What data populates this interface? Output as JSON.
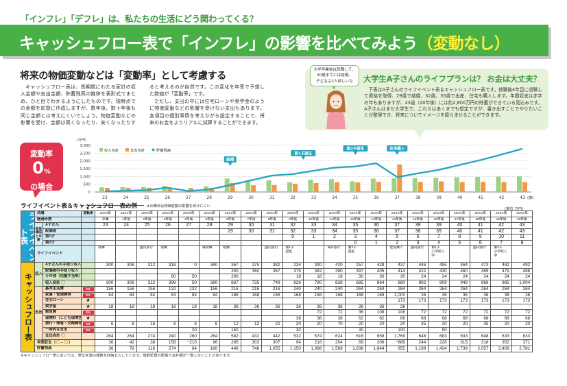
{
  "header": {
    "subtitle": "「インフレ」「デフレ」は、私たちの生活にどう関わってくる？",
    "title": "キャッシュフロー表で「インフレ」の影響を比べてみよう",
    "title_highlight": "（変動なし）"
  },
  "lead": {
    "heading": "将来の物価変動などは「変動率」として考慮する",
    "paragraphs": [
      "キャッシュフロー表は、長期間にわたる家計の収入金額や支出金額、貯蓄残高の推移を表形式でまとめ、ひと目でわかるようにしたものです。現時点での金額を前提に作成しますが、数年後、数十年後も同じ金額とは考えにくいでしょう。物価変動などの影響を受け、金額は高くなったり、安くなったりすると考えるのが自然です。この変化を年率で予想した数値が「変動率」です。",
      "ただし、支出の中には住宅ローンや奨学金のように物価変動などの影響を受けない支出もあります。各項目の個別事情を考えながら設定することで、将来のお金をよりリアルに試算することができます。"
    ]
  },
  "plan": {
    "bubble": "大学卒業後は就職して、\n30歳までには結婚、\n子どもは2人欲しいな",
    "title": "大学生A子さんのライフプランは？ お金は大丈夫？",
    "body": "下表はA子さんのライフイベント表＆キャッシュフロー表です。就職後4年目に退職して資格を取得、29歳で結婚、32歳、35歳で出産、住宅も購入します。年間収支は赤字の年もありますが、43歳（20年後）には約2,800万円の貯蓄ができている見込みです。A子さんはまだ大学生で、これらはあくまでも想定ですが、書き出すことでやりたいことが整理でき、将来についてイメージを膨らませることができます。"
  },
  "badge": {
    "line1": "変動率",
    "value": "0",
    "unit": "%",
    "line3": "の場合"
  },
  "colors": {
    "green": "#49b047",
    "income": "#9fd083",
    "expense": "#ef9a45",
    "savings": "#2aa6c1",
    "red": "#e2334e",
    "blue": "#24a3d1",
    "yellow": "#f6c81b"
  },
  "chart_data": {
    "type": "bar+line",
    "y_unit": "(万円)",
    "x_unit": "(歳)",
    "ylim": [
      0,
      3000
    ],
    "yticks": [
      "0",
      "500",
      "1,000",
      "1,500",
      "2,000",
      "2,500",
      "3,000"
    ],
    "ytick_values": [
      0,
      500,
      1000,
      1500,
      2000,
      2500,
      3000
    ],
    "categories": [
      "23",
      "24",
      "25",
      "26",
      "27",
      "28",
      "29",
      "30",
      "31",
      "32",
      "33",
      "34",
      "35",
      "36",
      "37",
      "38",
      "39",
      "40",
      "41",
      "42",
      "43"
    ],
    "legend": [
      "収入合計",
      "支出合計",
      "貯蓄残高"
    ],
    "legend_placement": "top-left",
    "grid": true,
    "series": [
      {
        "name": "収入合計",
        "type": "bar",
        "values": [
          300,
          306,
          312,
          398,
          50,
          360,
          867,
          735,
          749,
          626,
          790,
          828,
          685,
          864,
          880,
          892,
          909,
          948,
          966,
          985,
          1004
        ]
      },
      {
        "name": "支出合計",
        "type": "bar",
        "values": [
          264,
          264,
          274,
          240,
          260,
          264,
          582,
          432,
          442,
          532,
          574,
          624,
          616,
          658,
          1769,
          648,
          683,
          633,
          648,
          633,
          633
        ]
      },
      {
        "name": "貯蓄残高",
        "type": "line",
        "values": [
          36,
          78,
          116,
          274,
          64,
          160,
          446,
          748,
          1055,
          1150,
          1366,
          1569,
          1638,
          1844,
          955,
          1199,
          1424,
          1739,
          2057,
          2409,
          2781
        ]
      }
    ],
    "annotations": [
      {
        "label": "結婚",
        "age": 29
      },
      {
        "label": "第1子誕生",
        "age": 32.5
      },
      {
        "label": "第2子誕生",
        "age": 35
      },
      {
        "label": "住宅購入",
        "age": 37
      }
    ]
  },
  "table": {
    "title": "ライフイベント表＆キャッシュフロー表の例",
    "note": "★の費目は物価変動の影響を受けにくい",
    "unit": "(単位:万円)",
    "life_label": "ライフイベント表",
    "cf_label": "キャッシュフロー表",
    "year_label": "西暦",
    "elapsed_label": "経過年数",
    "rate_label": "変動率",
    "family_label": "家族構成と年齢",
    "event_label": "ライフイベント",
    "years": [
      "20XX年",
      "20XX年",
      "20XX年",
      "20XX年",
      "20XX年",
      "20XX年",
      "20XX年",
      "20XX年",
      "20XX年",
      "20XX年",
      "20XX年",
      "20XX年",
      "20XX年",
      "20XX年",
      "20XX年",
      "20XX年",
      "20XX年",
      "20XX年",
      "20XX年",
      "20XX年",
      "20XX年"
    ],
    "elapsed": [
      "卒業",
      "1年後",
      "2年後",
      "3年後",
      "4年後",
      "5年後",
      "6年後",
      "7年後",
      "8年後",
      "9年後",
      "10年後",
      "11年後",
      "12年後",
      "13年後",
      "14年後",
      "15年後",
      "16年後",
      "17年後",
      "18年後",
      "19年後",
      "20年後"
    ],
    "members": [
      {
        "name": "A子さん",
        "ages": [
          "23",
          "24",
          "25",
          "26",
          "27",
          "28",
          "29",
          "30",
          "31",
          "32",
          "33",
          "34",
          "35",
          "36",
          "37",
          "38",
          "39",
          "40",
          "41",
          "42",
          "43"
        ]
      },
      {
        "name": "配偶者",
        "ages": [
          "",
          "",
          "",
          "",
          "",
          "",
          "29",
          "30",
          "31",
          "32",
          "33",
          "34",
          "35",
          "36",
          "37",
          "38",
          "39",
          "40",
          "41",
          "42",
          "43"
        ]
      },
      {
        "name": "第1子",
        "ages": [
          "",
          "",
          "",
          "",
          "",
          "",
          "",
          "",
          "",
          "0",
          "1",
          "2",
          "3",
          "4",
          "5",
          "6",
          "7",
          "8",
          "9",
          "10",
          "11"
        ]
      },
      {
        "name": "第2子",
        "ages": [
          "",
          "",
          "",
          "",
          "",
          "",
          "",
          "",
          "",
          "",
          "",
          "",
          "0",
          "1",
          "2",
          "3",
          "4",
          "5",
          "6",
          "7",
          "8"
        ]
      }
    ],
    "events": [
      "就職",
      "",
      "国内旅行",
      "退職",
      "",
      "再就職",
      "結婚",
      "",
      "国内旅行",
      "第1子\n誕生",
      "",
      "海外旅行",
      "第2子\n誕生",
      "",
      "住宅購入",
      "国内旅行",
      "第1子\n小学校入学",
      "",
      "国内旅行",
      "第2子\n小学校入学",
      ""
    ],
    "income_label": "収入",
    "expense_label": "支出",
    "income_rows": [
      {
        "label": "A子さんの手取り収入",
        "rate": "",
        "values": [
          "300",
          "306",
          "312",
          "318",
          "0",
          "360",
          "367",
          "375",
          "382",
          "234",
          "390",
          "420",
          "257",
          "428",
          "437",
          "446",
          "455",
          "464",
          "473",
          "482",
          "492"
        ]
      },
      {
        "label": "配偶者の手取り収入",
        "rate": "",
        "values": [
          "",
          "",
          "",
          "",
          "",
          "",
          "300",
          "360",
          "367",
          "375",
          "382",
          "390",
          "397",
          "405",
          "414",
          "422",
          "430",
          "460",
          "469",
          "479",
          "488"
        ]
      },
      {
        "label": "その他（児童手当等）",
        "rate": "",
        "values": [
          "",
          "",
          "",
          "80",
          "50",
          "",
          "200",
          "",
          "",
          "18",
          "18",
          "18",
          "30",
          "30",
          "30",
          "24",
          "24",
          "24",
          "24",
          "24",
          "24"
        ]
      }
    ],
    "income_total": {
      "label": "収入合計",
      "values": [
        "300",
        "306",
        "312",
        "398",
        "50",
        "360",
        "867",
        "735",
        "749",
        "626",
        "790",
        "828",
        "685",
        "864",
        "880",
        "892",
        "909",
        "948",
        "966",
        "985",
        "1,004"
      ]
    },
    "expense_rows": [
      {
        "label": "基本生活費",
        "rate": "0%",
        "values": [
          "156",
          "156",
          "156",
          "132",
          "132",
          "156",
          "216",
          "216",
          "216",
          "240",
          "240",
          "240",
          "264",
          "264",
          "264",
          "264",
          "264",
          "264",
          "264",
          "264",
          "264"
        ]
      },
      {
        "label": "家賃・管理費等",
        "rate": "0%",
        "values": [
          "84",
          "84",
          "84",
          "84",
          "84",
          "84",
          "168",
          "168",
          "168",
          "168",
          "168",
          "168",
          "168",
          "168",
          "1,000",
          "36",
          "36",
          "36",
          "36",
          "36",
          "36"
        ]
      },
      {
        "label": "住宅ローン",
        "rate": "★",
        "values": [
          "",
          "",
          "",
          "",
          "",
          "",
          "",
          "",
          "",
          "",
          "",
          "",
          "",
          "",
          "173",
          "173",
          "173",
          "173",
          "173",
          "173",
          "173"
        ]
      },
      {
        "label": "奨学金",
        "rate": "★",
        "values": [
          "18",
          "18",
          "18",
          "18",
          "18",
          "18",
          "36",
          "36",
          "36",
          "36",
          "36",
          "36",
          "36",
          "36",
          "36",
          "",
          "",
          "",
          "",
          "",
          ""
        ]
      },
      {
        "label": "教育費",
        "rate": "0%",
        "values": [
          "",
          "",
          "",
          "",
          "",
          "",
          "",
          "",
          "",
          "",
          "72",
          "72",
          "36",
          "108",
          "108",
          "72",
          "72",
          "72",
          "72",
          "72",
          "72"
        ]
      },
      {
        "label": "保険料（こども保険含む）",
        "rate": "★",
        "values": [
          "",
          "",
          "",
          "",
          "",
          "",
          "",
          "",
          "",
          "38",
          "38",
          "38",
          "62",
          "62",
          "68",
          "68",
          "68",
          "68",
          "68",
          "68",
          "68"
        ]
      },
      {
        "label": "旅行・帰省・交際費等",
        "rate": "0%",
        "values": [
          "6",
          "6",
          "16",
          "6",
          "6",
          "6",
          "12",
          "12",
          "22",
          "20",
          "20",
          "70",
          "20",
          "20",
          "20",
          "35",
          "20",
          "20",
          "35",
          "20",
          "20"
        ]
      },
      {
        "label": "一時的な支出",
        "rate": "0%",
        "values": [
          "",
          "",
          "",
          "",
          "20",
          "",
          "150",
          "",
          "",
          "30",
          "",
          "",
          "30",
          "",
          "100",
          "",
          "50",
          "",
          "",
          "",
          ""
        ]
      }
    ],
    "expense_total": {
      "label": "支出合計",
      "values": [
        "264",
        "264",
        "274",
        "240",
        "260",
        "264",
        "582",
        "432",
        "442",
        "532",
        "574",
        "624",
        "616",
        "658",
        "1,769",
        "648",
        "683",
        "633",
        "648",
        "633",
        "633"
      ]
    },
    "balance": {
      "label": "年間収支",
      "formula": [
        "（",
        "−",
        "）"
      ],
      "values": [
        "36",
        "42",
        "38",
        "158",
        "−210",
        "96",
        "285",
        "303",
        "307",
        "94",
        "216",
        "204",
        "69",
        "206",
        "−889",
        "244",
        "226",
        "315",
        "318",
        "352",
        "371"
      ]
    },
    "savings": {
      "label": "貯蓄残高",
      "values": [
        "36",
        "78",
        "116",
        "274",
        "64",
        "160",
        "446",
        "748",
        "1,055",
        "1,150",
        "1,366",
        "1,569",
        "1,638",
        "1,844",
        "955",
        "1,199",
        "1,424",
        "1,739",
        "2,057",
        "2,409",
        "2,781"
      ]
    }
  },
  "footnote": "※キャッシュフロー表においては、単位未満の端数を四捨五入しています。端数処理の関係で合計額が一致しないことがあります。"
}
